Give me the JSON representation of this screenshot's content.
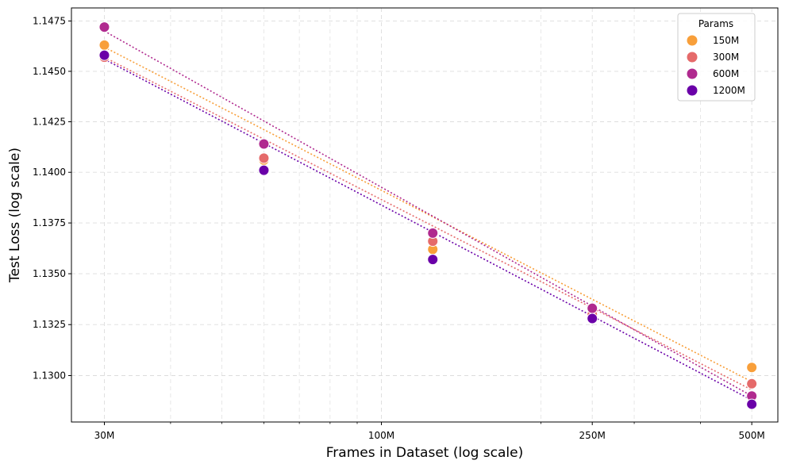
{
  "chart_data": {
    "type": "scatter",
    "title": "",
    "xlabel": "Frames in Dataset (log scale)",
    "ylabel": "Test Loss (log scale)",
    "x_scale": "log",
    "y_scale": "log",
    "x_ticks": [
      {
        "value": 30000000,
        "label": "30M"
      },
      {
        "value": 100000000,
        "label": "100M"
      },
      {
        "value": 250000000,
        "label": "250M"
      },
      {
        "value": 500000000,
        "label": "500M"
      }
    ],
    "y_ticks": [
      {
        "value": 1.13,
        "label": "1.1300"
      },
      {
        "value": 1.1325,
        "label": "1.1325"
      },
      {
        "value": 1.135,
        "label": "1.1350"
      },
      {
        "value": 1.1375,
        "label": "1.1375"
      },
      {
        "value": 1.14,
        "label": "1.1400"
      },
      {
        "value": 1.1425,
        "label": "1.1425"
      },
      {
        "value": 1.145,
        "label": "1.1450"
      },
      {
        "value": 1.1475,
        "label": "1.1475"
      }
    ],
    "grid": true,
    "legend": {
      "title": "Params",
      "position": "top-right"
    },
    "x": [
      30000000,
      60000000,
      125000000,
      250000000,
      500000000
    ],
    "series": [
      {
        "name": "150M",
        "color": "#f89f3a",
        "values": [
          1.1463,
          1.1406,
          1.1362,
          1.1328,
          1.1304
        ],
        "fit": [
          1.1462,
          1.1297
        ]
      },
      {
        "name": "300M",
        "color": "#e56a6a",
        "values": [
          1.1457,
          1.1407,
          1.1366,
          1.133,
          1.1296
        ],
        "fit": [
          1.1457,
          1.1293
        ]
      },
      {
        "name": "600M",
        "color": "#b02a8f",
        "values": [
          1.1472,
          1.1414,
          1.137,
          1.1333,
          1.129
        ],
        "fit": [
          1.147,
          1.129
        ]
      },
      {
        "name": "1200M",
        "color": "#6a00a8",
        "values": [
          1.1458,
          1.1401,
          1.1357,
          1.1328,
          1.1286
        ],
        "fit": [
          1.1456,
          1.1288
        ]
      }
    ]
  }
}
